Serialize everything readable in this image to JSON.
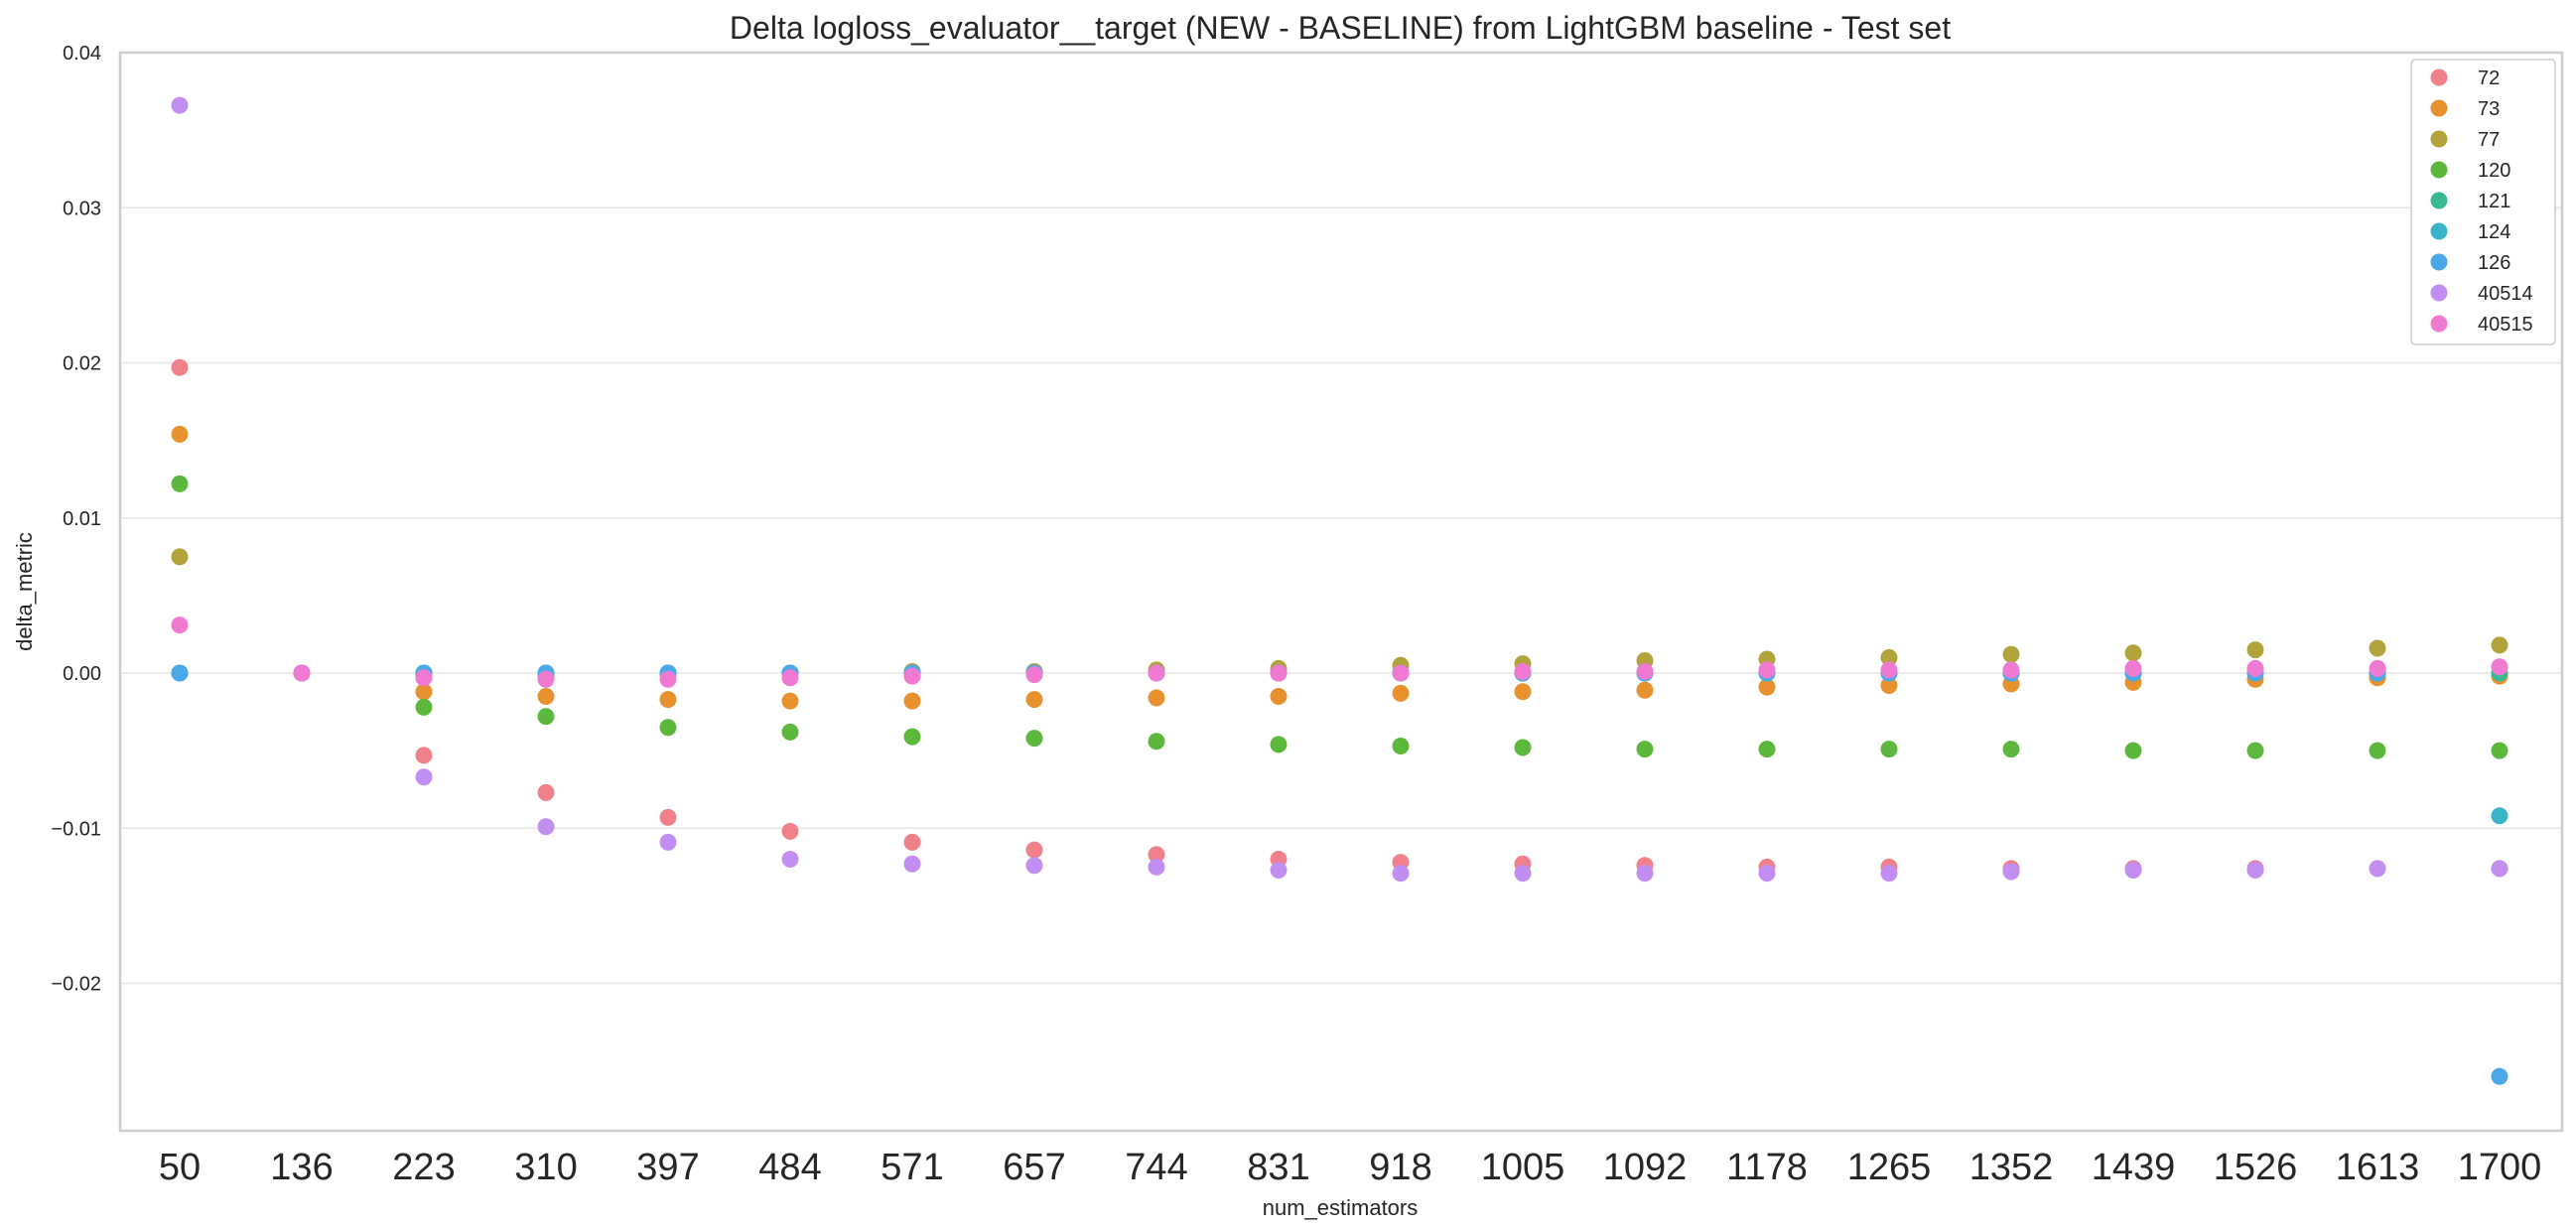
{
  "chart_data": {
    "type": "scatter",
    "title": "Delta logloss_evaluator__target (NEW - BASELINE) from LightGBM baseline - Test set",
    "xlabel": "num_estimators",
    "ylabel": "delta_metric",
    "categories": [
      "50",
      "136",
      "223",
      "310",
      "397",
      "484",
      "571",
      "657",
      "744",
      "831",
      "918",
      "1005",
      "1092",
      "1178",
      "1265",
      "1352",
      "1439",
      "1526",
      "1613",
      "1700"
    ],
    "ylim": [
      -0.0295,
      0.04
    ],
    "yticks": [
      -0.02,
      -0.01,
      0.0,
      0.01,
      0.02,
      0.03,
      0.04
    ],
    "ytick_labels": [
      "−0.02",
      "−0.01",
      "0.00",
      "0.01",
      "0.02",
      "0.03",
      "0.04"
    ],
    "grid": "horizontal",
    "legend_position": "top-right",
    "series": [
      {
        "name": "72",
        "color": "#f0808a",
        "values": [
          0.0197,
          0.0,
          -0.0053,
          -0.0077,
          -0.0093,
          -0.0102,
          -0.0109,
          -0.0114,
          -0.0117,
          -0.012,
          -0.0122,
          -0.0123,
          -0.0124,
          -0.0125,
          -0.0125,
          -0.0126,
          -0.0126,
          -0.0126,
          -0.0126,
          -0.0126
        ]
      },
      {
        "name": "73",
        "color": "#e7912f",
        "values": [
          0.0154,
          0.0,
          -0.0012,
          -0.0015,
          -0.0017,
          -0.0018,
          -0.0018,
          -0.0017,
          -0.0016,
          -0.0015,
          -0.0013,
          -0.0012,
          -0.0011,
          -0.0009,
          -0.0008,
          -0.0007,
          -0.0006,
          -0.0004,
          -0.0003,
          -0.0002
        ]
      },
      {
        "name": "77",
        "color": "#b2a43a",
        "values": [
          0.0075,
          0.0,
          -0.0002,
          -0.0002,
          -0.0001,
          0.0,
          0.0001,
          0.0001,
          0.0002,
          0.0003,
          0.0005,
          0.0006,
          0.0008,
          0.0009,
          0.001,
          0.0012,
          0.0013,
          0.0015,
          0.0016,
          0.0018
        ]
      },
      {
        "name": "120",
        "color": "#5cb83d",
        "values": [
          0.0122,
          0.0,
          -0.0022,
          -0.0028,
          -0.0035,
          -0.0038,
          -0.0041,
          -0.0042,
          -0.0044,
          -0.0046,
          -0.0047,
          -0.0048,
          -0.0049,
          -0.0049,
          -0.0049,
          -0.0049,
          -0.005,
          -0.005,
          -0.005,
          -0.005
        ]
      },
      {
        "name": "121",
        "color": "#39b894",
        "values": [
          0.0,
          0.0,
          0.0,
          0.0,
          0.0,
          0.0,
          0.0,
          0.0,
          0.0,
          0.0,
          0.0,
          0.0,
          0.0,
          0.0,
          0.0,
          0.0,
          0.0,
          0.0,
          0.0,
          0.0
        ]
      },
      {
        "name": "124",
        "color": "#38b3c7",
        "values": [
          0.0,
          0.0,
          0.0,
          0.0,
          0.0,
          0.0,
          0.0,
          0.0,
          0.0,
          0.0,
          0.0,
          0.0,
          0.0,
          0.0,
          0.0,
          0.0,
          0.0,
          0.0,
          0.0,
          -0.0092
        ]
      },
      {
        "name": "126",
        "color": "#4ba8e8",
        "values": [
          0.0,
          0.0,
          0.0,
          0.0,
          0.0,
          0.0,
          0.0,
          0.0,
          0.0,
          0.0,
          0.0,
          0.0,
          0.0,
          0.0,
          0.0,
          0.0,
          0.0,
          0.0,
          0.0,
          -0.026
        ]
      },
      {
        "name": "40514",
        "color": "#c38ef2",
        "values": [
          0.0366,
          0.0,
          -0.0067,
          -0.0099,
          -0.0109,
          -0.012,
          -0.0123,
          -0.0124,
          -0.0125,
          -0.0127,
          -0.0129,
          -0.0129,
          -0.0129,
          -0.0129,
          -0.0129,
          -0.0128,
          -0.0127,
          -0.0127,
          -0.0126,
          -0.0126
        ]
      },
      {
        "name": "40515",
        "color": "#f07ad2",
        "values": [
          0.0031,
          0.0,
          -0.0003,
          -0.0004,
          -0.0004,
          -0.0003,
          -0.0002,
          -0.0001,
          0.0,
          0.0,
          0.0,
          0.0001,
          0.0001,
          0.0002,
          0.0002,
          0.0002,
          0.0003,
          0.0003,
          0.0003,
          0.0004
        ]
      }
    ]
  }
}
